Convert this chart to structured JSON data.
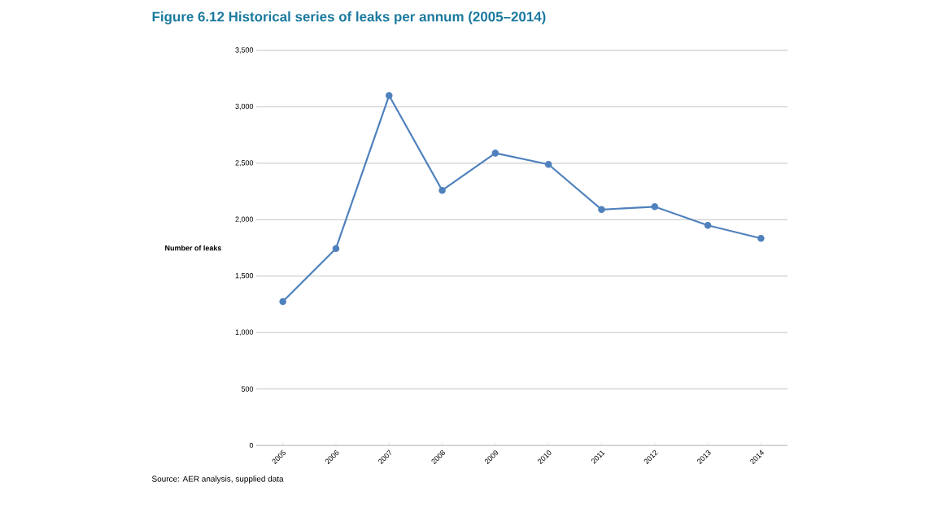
{
  "chart_data": {
    "type": "line",
    "title": "Figure 6.12 Historical series of leaks per annum (2005–2014)",
    "ylabel": "Number of leaks",
    "categories": [
      "2005",
      "2006",
      "2007",
      "2008",
      "2009",
      "2010",
      "2011",
      "2012",
      "2013",
      "2014"
    ],
    "series": [
      {
        "color": "#4f81bd",
        "values": [
          1275,
          1745,
          3100,
          2260,
          2590,
          2490,
          2090,
          2115,
          1950,
          1835
        ]
      }
    ],
    "ylim": [
      0,
      3500
    ],
    "yticks": [
      0,
      {
        "value": 500,
        "label": "500"
      },
      {
        "value": 1000,
        "label": "1,000"
      },
      {
        "value": 1500,
        "label": "1,500"
      },
      {
        "value": 2000,
        "label": "2,000"
      },
      {
        "value": 2500,
        "label": "2,500"
      },
      {
        "value": 3000,
        "label": "3,000"
      },
      {
        "value": 3500,
        "label": "3,500"
      }
    ],
    "grid": "y",
    "marker": "circle",
    "line_style": "solid",
    "annotations": [
      "Source:    AER analysis, supplied data"
    ]
  }
}
